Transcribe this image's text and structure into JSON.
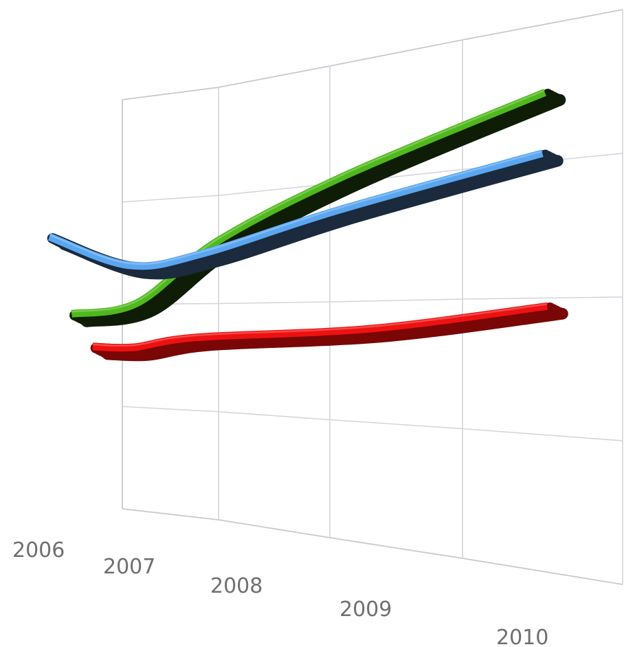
{
  "chart_data": {
    "type": "line",
    "style": "3d-ribbon",
    "title": "",
    "xlabel": "",
    "ylabel": "",
    "x": [
      "2006",
      "2007",
      "2008",
      "2009",
      "2010"
    ],
    "grid": true,
    "legend": "none",
    "series": [
      {
        "color": "#5aa6f0",
        "shade": "#1b2a3c",
        "values": [
          [
            0,
            8.1
          ],
          [
            0.7,
            7.2
          ],
          [
            1.3,
            7.45
          ],
          [
            2.3,
            8.35
          ],
          [
            3.55,
            9.25
          ]
        ]
      },
      {
        "color": "#4fb81c",
        "shade": "#0f1d06",
        "values": [
          [
            0,
            5.8
          ],
          [
            0.6,
            6.1
          ],
          [
            1.3,
            7.75
          ],
          [
            2.3,
            9.2
          ],
          [
            3.55,
            10.55
          ]
        ]
      },
      {
        "color": "#ee1111",
        "shade": "#7a0606",
        "values": [
          [
            0,
            4.8
          ],
          [
            0.4,
            4.8
          ],
          [
            1.0,
            5.1
          ],
          [
            2.4,
            5.35
          ],
          [
            3.55,
            5.85
          ]
        ]
      }
    ]
  }
}
